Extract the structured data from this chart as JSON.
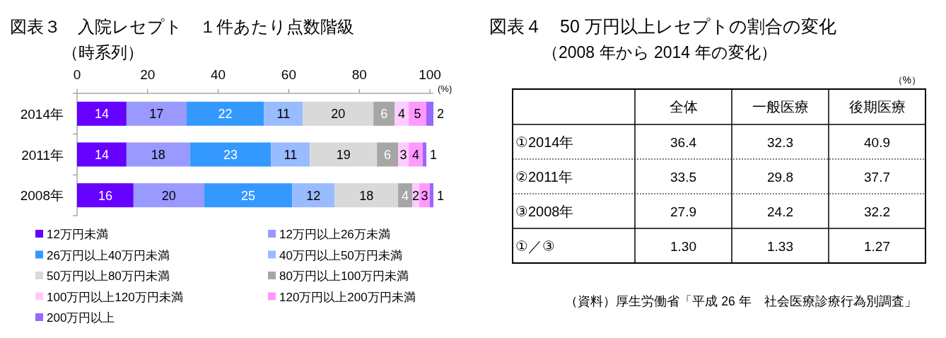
{
  "chart_data": [
    {
      "type": "bar",
      "orientation": "horizontal",
      "stacked": true,
      "title": "図表３　入院レセプト　１件あたり点数階級",
      "subtitle": "（時系列）",
      "xlabel": "(%)",
      "categories": [
        "2014年",
        "2011年",
        "2008年"
      ],
      "xlim": [
        0,
        101
      ],
      "xticks": [
        0,
        20,
        40,
        60,
        80,
        100
      ],
      "data_labels": true,
      "legend": "bottom",
      "series": [
        {
          "name": "12万円未満",
          "color": "#6600ff",
          "values": [
            14,
            14,
            16
          ]
        },
        {
          "name": "12万円以上26万未満",
          "color": "#9999ff",
          "values": [
            17,
            18,
            20
          ]
        },
        {
          "name": "26万円以上40万円未満",
          "color": "#3399ff",
          "values": [
            22,
            23,
            25
          ]
        },
        {
          "name": "40万円以上50万円未満",
          "color": "#99bbff",
          "values": [
            11,
            11,
            12
          ]
        },
        {
          "name": "50万円以上80万円未満",
          "color": "#d9d9d9",
          "values": [
            20,
            19,
            18
          ]
        },
        {
          "name": "80万円以上100万円未満",
          "color": "#a6a6a6",
          "values": [
            6,
            6,
            4
          ]
        },
        {
          "name": "100万円以上120万円未満",
          "color": "#ffccff",
          "values": [
            4,
            3,
            2
          ]
        },
        {
          "name": "120万円以上200万円未満",
          "color": "#ff99ff",
          "values": [
            5,
            4,
            3
          ]
        },
        {
          "name": "200万円以上",
          "color": "#9966ff",
          "values": [
            2,
            1,
            1
          ]
        }
      ]
    },
    {
      "type": "heatmap",
      "title": "図表４　50 万円以上レセプトの割合の変化",
      "subtitle": "（2008 年から 2014 年の変化）",
      "categories": [
        "全体",
        "一般医療",
        "後期医療"
      ],
      "y_categories": [
        "①2014年",
        "②2011年",
        "③2008年",
        "①／③"
      ],
      "cells": [
        [
          36.4,
          32.3,
          40.9
        ],
        [
          33.5,
          29.8,
          37.7
        ],
        [
          27.9,
          24.2,
          32.2
        ],
        [
          1.3,
          1.33,
          1.27
        ]
      ],
      "cell_labels": [
        [
          "36.4",
          "32.3",
          "40.9"
        ],
        [
          "33.5",
          "29.8",
          "37.7"
        ],
        [
          "27.9",
          "24.2",
          "32.2"
        ],
        [
          "1.30",
          "1.33",
          "1.27"
        ]
      ],
      "annotations": [
        "（%）",
        "（資料）厚生労働省「平成 26 年　社会医療診療行為別調査」"
      ]
    }
  ]
}
